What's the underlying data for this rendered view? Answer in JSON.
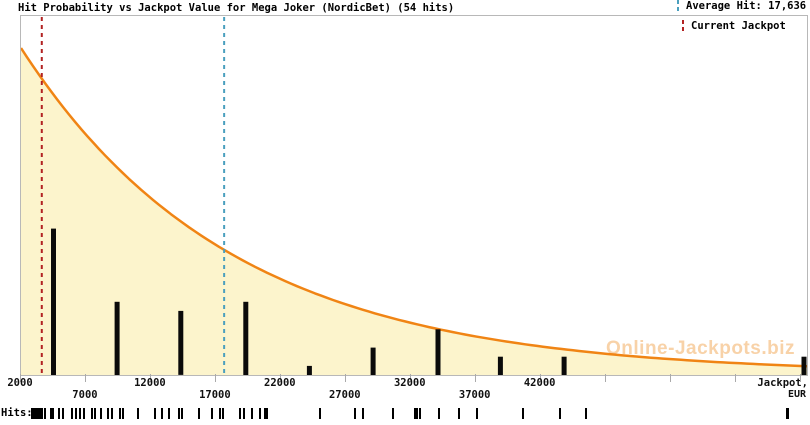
{
  "title": "Hit Probability vs Jackpot Value for Mega Joker (NordicBet) (54 hits)",
  "legend": {
    "average_hit_label": "Average Hit: 17,636",
    "current_jackpot_label": "Current Jackpot"
  },
  "watermark": "Online-Jackpots.biz",
  "axis": {
    "x_corner_label_line1": "Jackpot,",
    "x_corner_label_line2": "EUR",
    "tick_min": 2000,
    "tick_max": 62000,
    "tick_step": 5000,
    "row1_labels": [
      "2000",
      "12000",
      "22000",
      "32000",
      "42000"
    ],
    "row1_values": [
      2000,
      12000,
      22000,
      32000,
      42000
    ],
    "row2_labels": [
      "7000",
      "17000",
      "27000",
      "37000"
    ],
    "row2_values": [
      7000,
      17000,
      27000,
      37000
    ]
  },
  "rug": {
    "label": "Hits:"
  },
  "colors": {
    "curve": "#F08414",
    "fill": "#FCF4CC",
    "bar": "#0a0a0a",
    "average_line": "#4A9FBE",
    "current_line": "#B22222",
    "watermark": "#F8D2A8",
    "border": "#B8B8B8"
  },
  "chart_data": {
    "type": "area",
    "title": "Hit Probability vs Jackpot Value for Mega Joker (NordicBet) (54 hits)",
    "xlabel": "Jackpot, EUR",
    "ylabel": "Hit Probability",
    "x_range": [
      2000,
      62500
    ],
    "grid": false,
    "legend_position": "top-right",
    "total_hits": 54,
    "average_hit_eur": 17636,
    "current_jackpot_eur": 3600,
    "curve": {
      "kind": "exponential-decay",
      "amplitude": 1.0,
      "x_start": 2000,
      "decay_constant_eur": 16200
    },
    "histogram": {
      "bin_centers_eur": [
        4500,
        9400,
        14300,
        19300,
        24200,
        29100,
        34100,
        38900,
        43800,
        62400
      ],
      "counts": [
        16,
        8,
        7,
        8,
        1,
        3,
        5,
        2,
        2,
        2
      ]
    },
    "hit_rug_eur": [
      2950,
      3050,
      3150,
      3250,
      3400,
      3550,
      3700,
      3950,
      4400,
      4550,
      5000,
      5300,
      6000,
      6300,
      6650,
      6900,
      7550,
      7800,
      8250,
      8750,
      9050,
      9700,
      9950,
      11100,
      12400,
      12950,
      13450,
      14250,
      14500,
      15750,
      16800,
      17400,
      17650,
      18950,
      19250,
      19850,
      20450,
      20850,
      21050,
      25100,
      27800,
      28400,
      30700,
      32400,
      32550,
      32800,
      34250,
      35800,
      37150,
      40700,
      43550,
      45600,
      61000,
      61150
    ]
  }
}
